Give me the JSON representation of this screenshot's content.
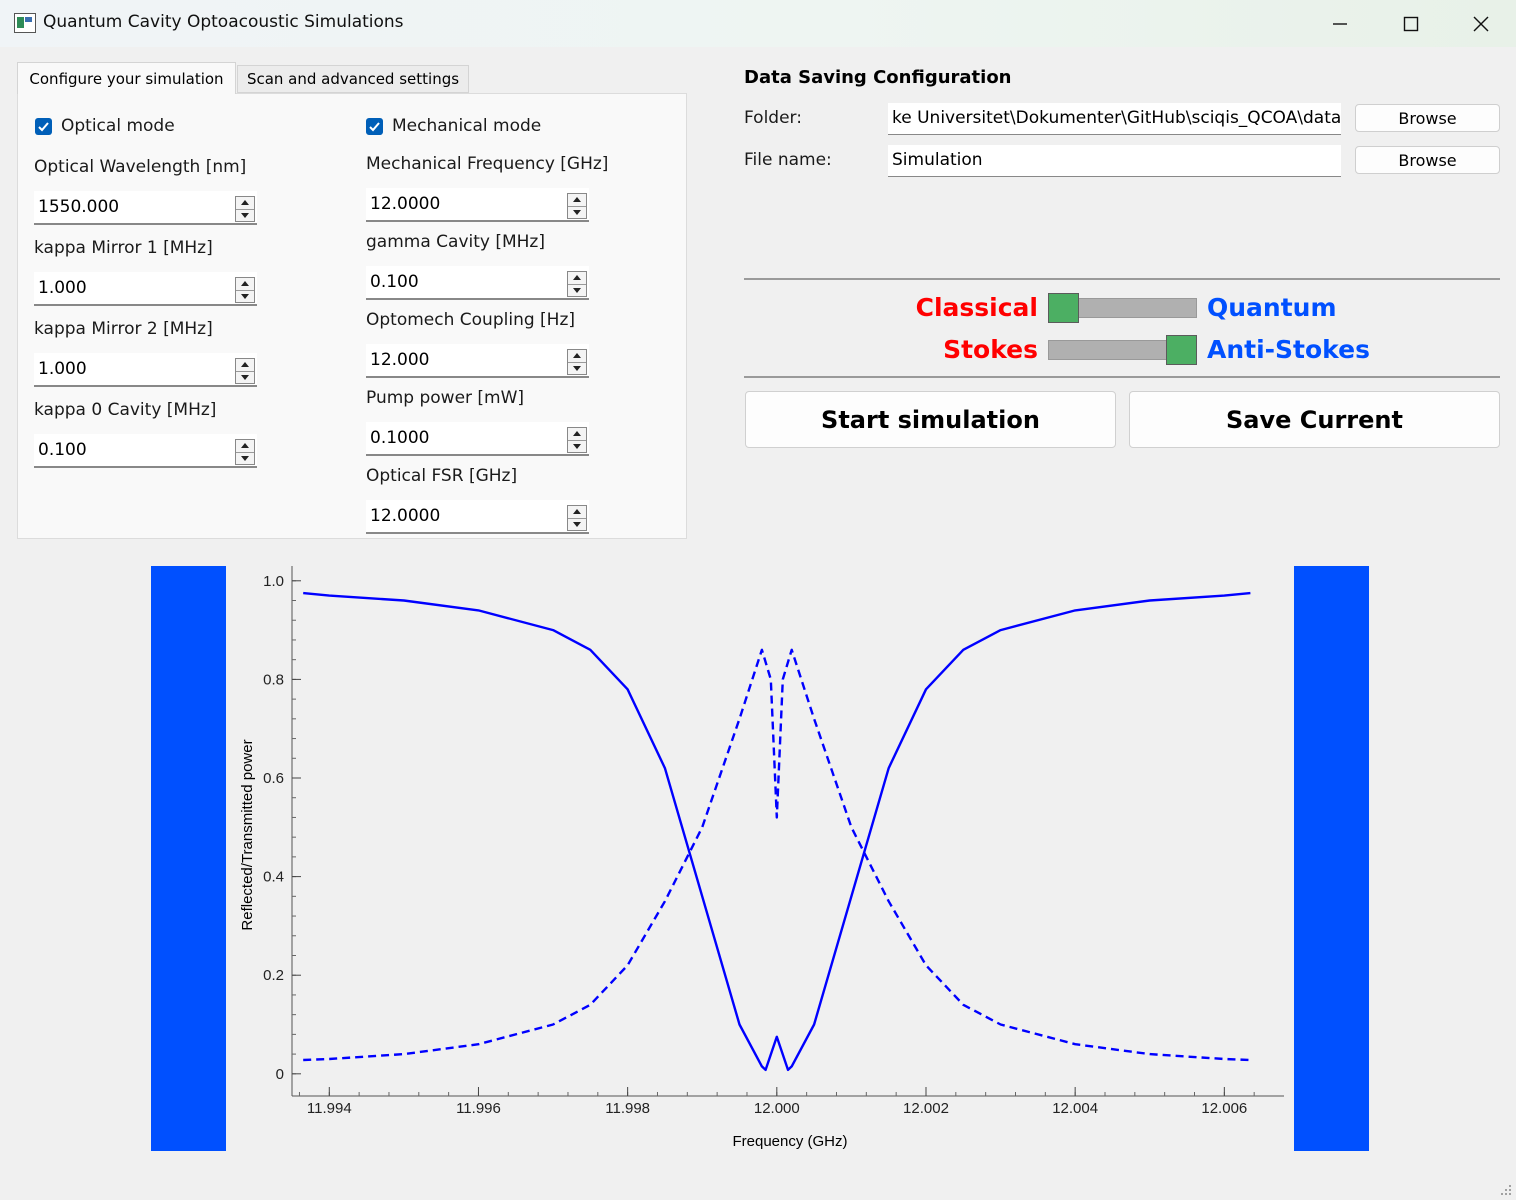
{
  "window": {
    "title": "Quantum Cavity Optoacoustic Simulations"
  },
  "tabs": [
    {
      "label": "Configure your simulation",
      "active": true
    },
    {
      "label": "Scan and advanced settings",
      "active": false
    }
  ],
  "optical": {
    "checkbox_label": "Optical mode",
    "checked": true,
    "fields": [
      {
        "label": "Optical Wavelength [nm]",
        "value": "1550.000"
      },
      {
        "label": "kappa Mirror 1 [MHz]",
        "value": "1.000"
      },
      {
        "label": "kappa Mirror 2 [MHz]",
        "value": "1.000"
      },
      {
        "label": "kappa 0 Cavity [MHz]",
        "value": "0.100"
      }
    ]
  },
  "mechanical": {
    "checkbox_label": "Mechanical mode",
    "checked": true,
    "fields": [
      {
        "label": "Mechanical Frequency [GHz]",
        "value": "12.0000"
      },
      {
        "label": "gamma Cavity [MHz]",
        "value": "0.100"
      },
      {
        "label": "Optomech Coupling [Hz]",
        "value": "12.000"
      },
      {
        "label": "Pump power [mW]",
        "value": "0.1000"
      },
      {
        "label": "Optical FSR [GHz]",
        "value": "12.0000"
      }
    ]
  },
  "saving": {
    "title": "Data Saving Configuration",
    "folder_label": "Folder:",
    "folder_value": "ke Universitet\\Dokumenter\\GitHub\\sciqis_QCOA\\data",
    "file_label": "File name:",
    "file_value": "Simulation",
    "browse_label": "Browse"
  },
  "toggles": {
    "mode": {
      "left": "Classical",
      "right": "Quantum",
      "left_color": "#ff0000",
      "right_color": "#0050ff",
      "position": "left"
    },
    "sideband": {
      "left": "Stokes",
      "right": "Anti-Stokes",
      "left_color": "#ff0000",
      "right_color": "#0050ff",
      "position": "right"
    }
  },
  "buttons": {
    "start": "Start simulation",
    "save": "Save Current"
  },
  "chart_data": {
    "type": "line",
    "xlabel": "Frequency (GHz)",
    "ylabel": "Reflected/Transmitted power",
    "xlim": [
      11.9935,
      12.0068
    ],
    "ylim": [
      -0.045,
      1.03
    ],
    "xticks": [
      "11.994",
      "11.996",
      "11.998",
      "12.000",
      "12.002",
      "12.004",
      "12.006"
    ],
    "yticks": [
      "0",
      "0.2",
      "0.4",
      "0.6",
      "0.8",
      "1.0"
    ],
    "line_color": "#0000ff",
    "series": [
      {
        "style": "solid",
        "x": [
          11.99365,
          11.994,
          11.995,
          11.996,
          11.997,
          11.9975,
          11.998,
          11.9985,
          11.999,
          11.9995,
          11.9998,
          11.99985,
          12.0,
          12.00015,
          12.0002,
          12.0005,
          12.001,
          12.0015,
          12.002,
          12.0025,
          12.003,
          12.004,
          12.005,
          12.006,
          12.00635
        ],
        "y": [
          0.975,
          0.97,
          0.96,
          0.94,
          0.9,
          0.86,
          0.78,
          0.62,
          0.36,
          0.1,
          0.015,
          0.008,
          0.075,
          0.008,
          0.015,
          0.1,
          0.36,
          0.62,
          0.78,
          0.86,
          0.9,
          0.94,
          0.96,
          0.97,
          0.975
        ]
      },
      {
        "style": "dashed",
        "x": [
          11.99365,
          11.994,
          11.995,
          11.996,
          11.997,
          11.9975,
          11.998,
          11.9985,
          11.999,
          11.9995,
          11.9998,
          11.99992,
          12.0,
          12.00008,
          12.0002,
          12.0005,
          12.001,
          12.0015,
          12.002,
          12.0025,
          12.003,
          12.004,
          12.005,
          12.006,
          12.00635
        ],
        "y": [
          0.028,
          0.03,
          0.04,
          0.06,
          0.1,
          0.14,
          0.22,
          0.35,
          0.5,
          0.72,
          0.86,
          0.8,
          0.52,
          0.8,
          0.86,
          0.72,
          0.5,
          0.35,
          0.22,
          0.14,
          0.1,
          0.06,
          0.04,
          0.03,
          0.028
        ]
      }
    ]
  }
}
